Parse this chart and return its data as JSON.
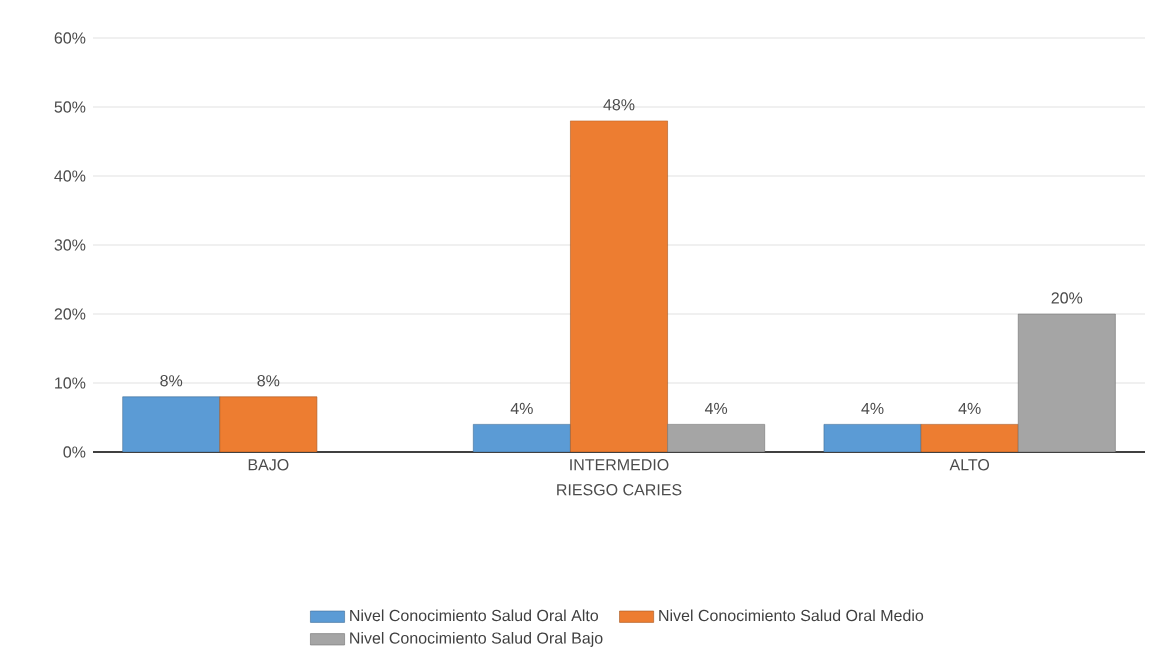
{
  "chart_data": {
    "type": "bar",
    "xlabel": "RIESGO CARIES",
    "categories": [
      "BAJO",
      "INTERMEDIO",
      "ALTO"
    ],
    "series": [
      {
        "name": "Nivel Conocimiento Salud Oral Alto",
        "color": "#5b9bd5",
        "values": [
          8,
          4,
          4
        ],
        "value_labels": [
          "8%",
          "4%",
          "4%"
        ]
      },
      {
        "name": "Nivel Conocimiento Salud Oral Medio",
        "color": "#ed7d31",
        "values": [
          8,
          48,
          4
        ],
        "value_labels": [
          "8%",
          "48%",
          "4%"
        ]
      },
      {
        "name": "Nivel Conocimiento Salud Oral Bajo",
        "color": "#a5a5a5",
        "values": [
          null,
          4,
          20
        ],
        "value_labels": [
          null,
          "4%",
          "20%"
        ]
      }
    ],
    "ylim": [
      0,
      60
    ],
    "yticks": [
      {
        "value": 0,
        "label": "0%"
      },
      {
        "value": 10,
        "label": "10%"
      },
      {
        "value": 20,
        "label": "20%"
      },
      {
        "value": 30,
        "label": "30%"
      },
      {
        "value": 40,
        "label": "40%"
      },
      {
        "value": 50,
        "label": "50%"
      },
      {
        "value": 60,
        "label": "60%"
      }
    ],
    "grid": "y",
    "legend": "bottom"
  }
}
